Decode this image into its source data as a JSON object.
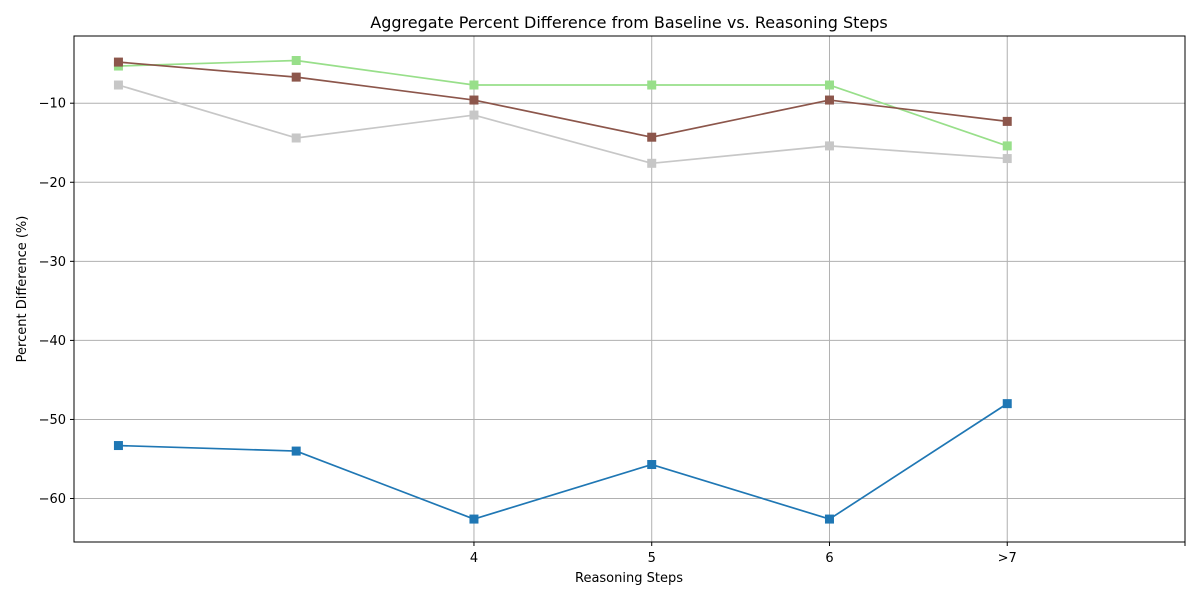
{
  "chart_data": {
    "type": "line",
    "title": "Aggregate Percent Difference from Baseline vs. Reasoning Steps",
    "xlabel": "Reasoning Steps",
    "ylabel": "Percent Difference (%)",
    "x_positions": [
      0,
      1,
      2,
      3,
      4,
      5
    ],
    "xtick_positions": [
      2,
      3,
      4,
      5,
      6
    ],
    "xtick_labels": [
      "4",
      "5",
      "6",
      ">7",
      ""
    ],
    "xlim": [
      -0.25,
      6
    ],
    "ylim": [
      -65.5,
      -1.5
    ],
    "yticks": [
      -60,
      -50,
      -40,
      -30,
      -20,
      -10
    ],
    "ytick_labels": [
      "−60",
      "−50",
      "−40",
      "−30",
      "−20",
      "−10"
    ],
    "grid": true,
    "marker": "square",
    "series": [
      {
        "color": "#98df8a",
        "values": [
          -5.3,
          -4.6,
          -7.7,
          -7.7,
          -7.7,
          -15.4
        ]
      },
      {
        "color": "#8c564b",
        "values": [
          -4.8,
          -6.7,
          -9.6,
          -14.3,
          -9.6,
          -12.3
        ]
      },
      {
        "color": "#c7c7c7",
        "values": [
          -7.7,
          -14.4,
          -11.5,
          -17.6,
          -15.4,
          -17.0
        ]
      },
      {
        "color": "#1f77b4",
        "values": [
          -53.3,
          -54.0,
          -62.6,
          -55.7,
          -62.6,
          -48.0
        ]
      }
    ]
  }
}
